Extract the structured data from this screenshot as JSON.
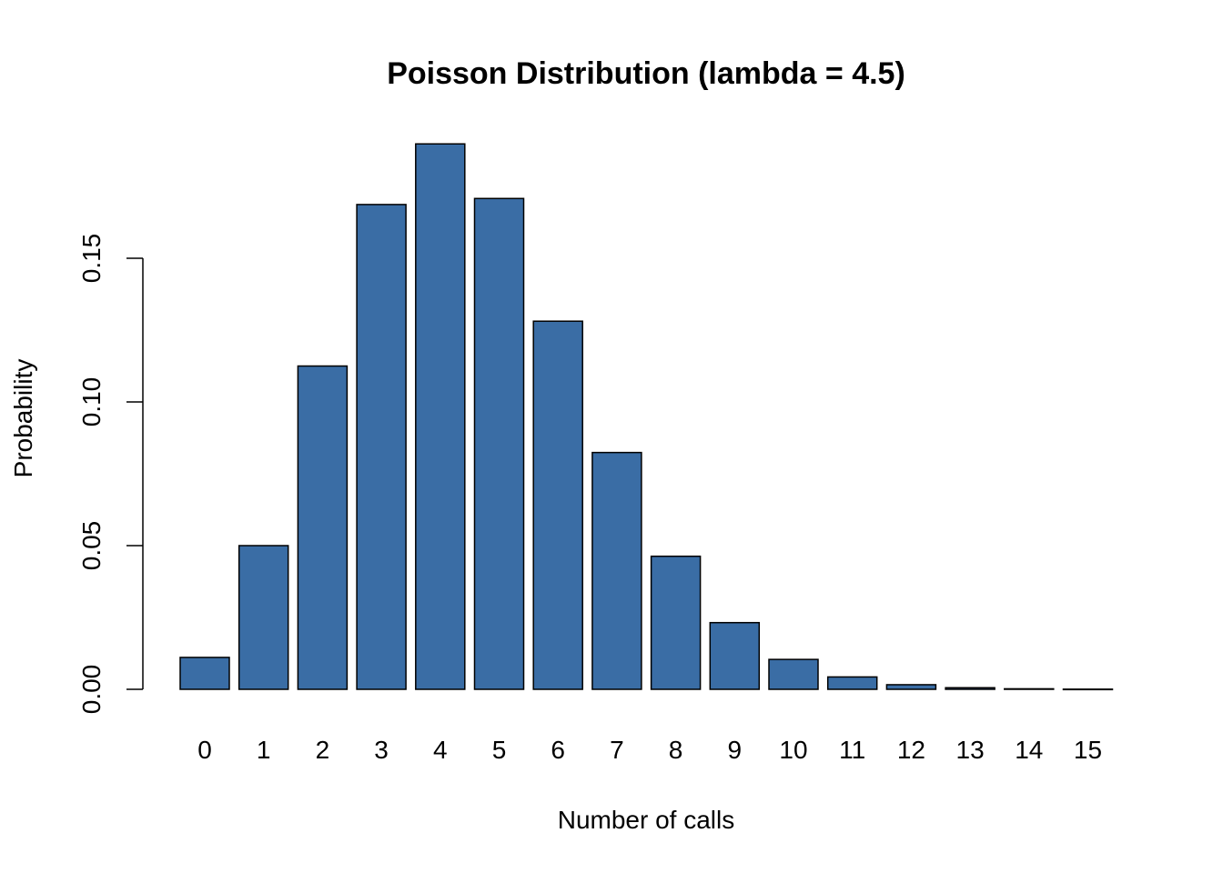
{
  "chart_data": {
    "type": "bar",
    "title": "Poisson Distribution (lambda = 4.5)",
    "xlabel": "Number of calls",
    "ylabel": "Probability",
    "categories": [
      "0",
      "1",
      "2",
      "3",
      "4",
      "5",
      "6",
      "7",
      "8",
      "9",
      "10",
      "11",
      "12",
      "13",
      "14",
      "15"
    ],
    "values": [
      0.0111,
      0.05,
      0.1125,
      0.1687,
      0.1898,
      0.1708,
      0.1281,
      0.0824,
      0.0463,
      0.0232,
      0.0104,
      0.0043,
      0.0016,
      0.00055,
      0.00018,
      5e-05
    ],
    "yticks": [
      "0.00",
      "0.05",
      "0.10",
      "0.15"
    ],
    "ytick_values": [
      0,
      0.05,
      0.1,
      0.15
    ],
    "ylim": [
      0,
      0.19
    ],
    "grid": false,
    "bar_color": "#3A6DA5",
    "edge_color": "#000000"
  }
}
